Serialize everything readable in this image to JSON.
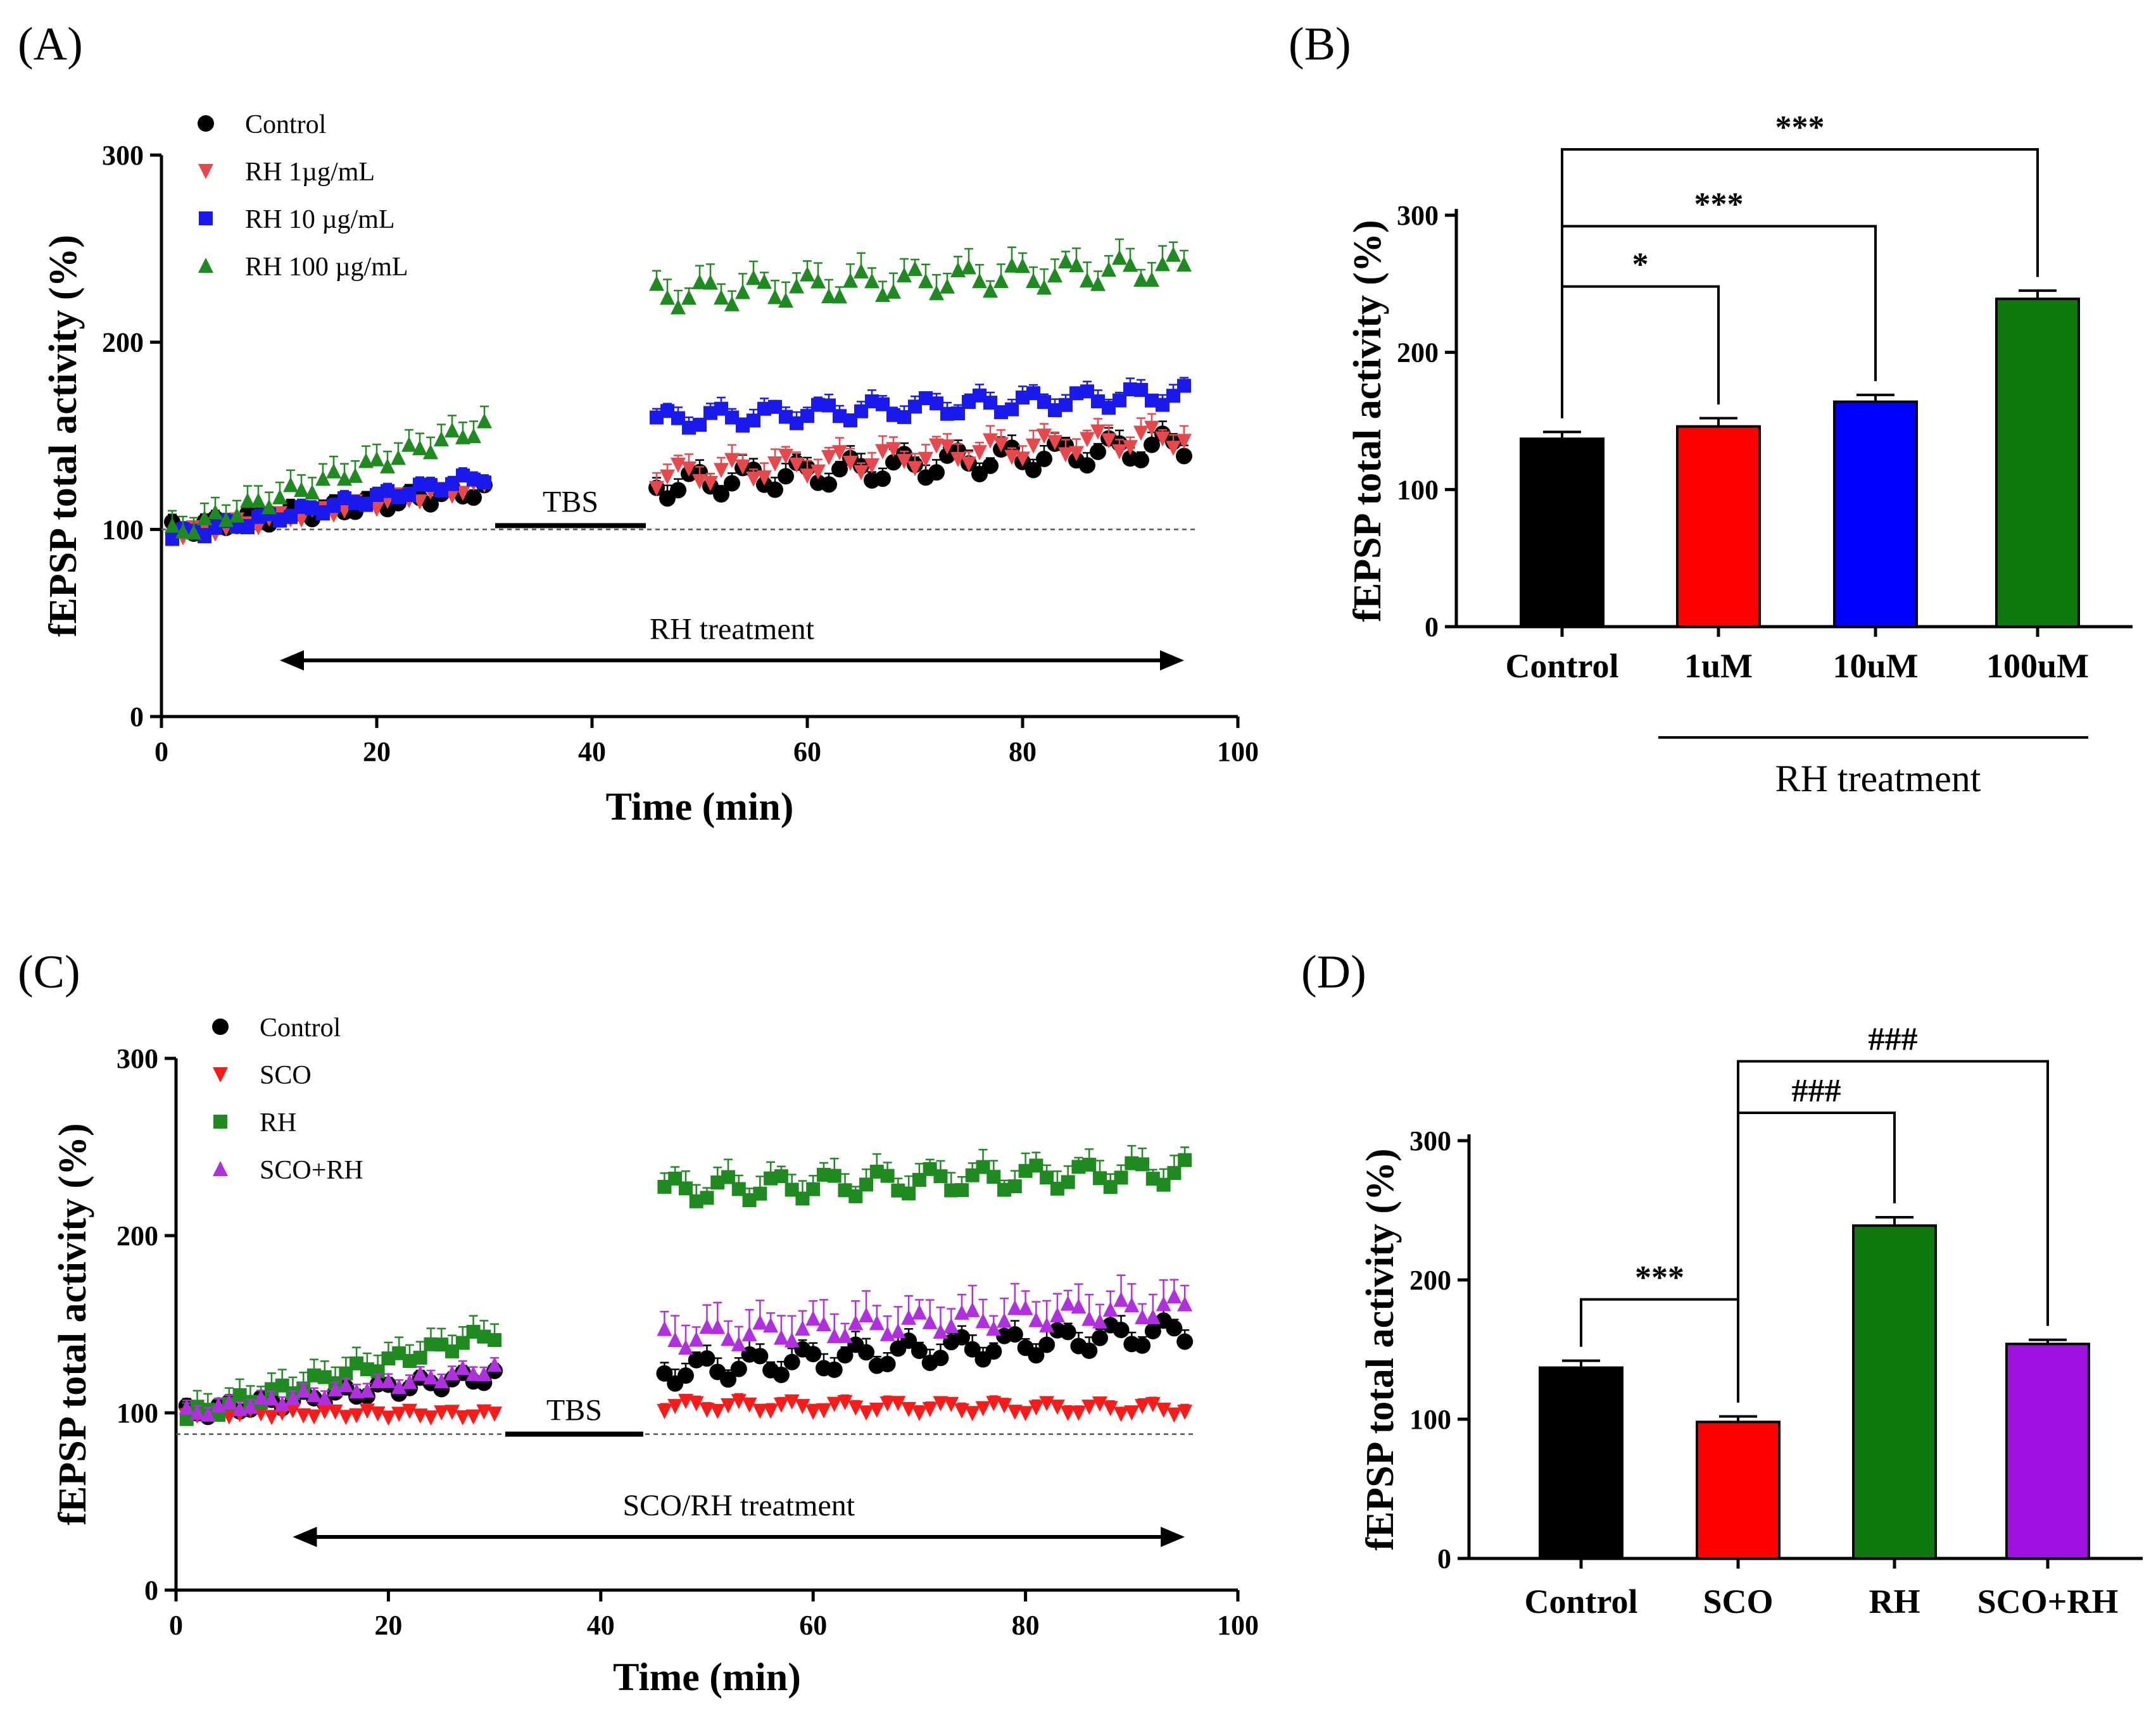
{
  "panel_labels": [
    "(A)",
    "(B)",
    "(C)",
    "(D)"
  ],
  "chart_data": [
    {
      "id": "A",
      "type": "scatter",
      "xlabel": "Time (min)",
      "ylabel": "fEPSP total activity (%)",
      "xlim": [
        0,
        100
      ],
      "ylim": [
        0,
        300
      ],
      "xticks": [
        0,
        20,
        40,
        60,
        80,
        100
      ],
      "yticks": [
        0,
        100,
        200,
        300
      ],
      "baseline": 100,
      "tbs": {
        "label": "TBS",
        "x0": 31,
        "x1": 45,
        "y": 102
      },
      "treatment": {
        "label": "RH treatment",
        "x0": 11,
        "x1": 95,
        "y": 30
      },
      "series": [
        {
          "name": "Control",
          "marker": "circle",
          "color": "#000000",
          "pre": {
            "start": 100,
            "end": 121,
            "wobble": 4,
            "err": 4
          },
          "post": {
            "start": 123,
            "end": 145,
            "wobble": 7,
            "err": 7
          }
        },
        {
          "name": "RH 1µg/mL",
          "marker": "tri-down",
          "color": "#e8474b",
          "pre": {
            "start": 97,
            "end": 123,
            "wobble": 3,
            "err": 3
          },
          "post": {
            "start": 128,
            "end": 150,
            "wobble": 6,
            "err": 8
          }
        },
        {
          "name": "RH 10 µg/mL",
          "marker": "square",
          "color": "#1a1aee",
          "pre": {
            "start": 96,
            "end": 128,
            "wobble": 3,
            "err": 4
          },
          "post": {
            "start": 158,
            "end": 172,
            "wobble": 5,
            "err": 6
          }
        },
        {
          "name": "RH 100 µg/mL",
          "marker": "tri-up",
          "color": "#1f8a1f",
          "pre": {
            "start": 98,
            "end": 155,
            "wobble": 4,
            "err": 8
          },
          "post": {
            "start": 225,
            "end": 240,
            "wobble": 7,
            "err": 10
          }
        }
      ]
    },
    {
      "id": "B",
      "type": "bar",
      "ylabel": "fEPSP total activity (%)",
      "ylim": [
        0,
        300
      ],
      "yticks": [
        0,
        100,
        200,
        300
      ],
      "categories": [
        "Control",
        "1uM",
        "10uM",
        "100uM"
      ],
      "values": [
        137,
        146,
        164,
        239
      ],
      "errors": [
        5,
        6,
        5,
        6
      ],
      "colors": [
        "#000000",
        "#ff0000",
        "#0000ff",
        "#0e7a0e"
      ],
      "significance": [
        {
          "from": 0,
          "to": 1,
          "label": "*",
          "level": 248
        },
        {
          "from": 0,
          "to": 2,
          "label": "***",
          "level": 292
        },
        {
          "from": 0,
          "to": 3,
          "label": "***",
          "level": 348
        }
      ],
      "group_label": "RH treatment"
    },
    {
      "id": "C",
      "type": "scatter",
      "xlabel": "Time (min)",
      "ylabel": "fEPSP total activity (%)",
      "xlim": [
        0,
        100
      ],
      "ylim": [
        0,
        300
      ],
      "xticks": [
        0,
        20,
        40,
        60,
        80,
        100
      ],
      "yticks": [
        0,
        100,
        200,
        300
      ],
      "baseline": 88,
      "tbs": {
        "label": "TBS",
        "x0": 31,
        "x1": 44,
        "y": 88
      },
      "treatment": {
        "label": "SCO/RH treatment",
        "x0": 11,
        "x1": 95,
        "y": 30
      },
      "series": [
        {
          "name": "Control",
          "marker": "circle",
          "color": "#000000",
          "pre": {
            "start": 100,
            "end": 121,
            "wobble": 4,
            "err": 4
          },
          "post": {
            "start": 123,
            "end": 146,
            "wobble": 7,
            "err": 8
          }
        },
        {
          "name": "SCO",
          "marker": "tri-down",
          "color": "#ff1a1a",
          "pre": {
            "start": 100,
            "end": 99,
            "wobble": 2,
            "err": 3
          },
          "post": {
            "start": 104,
            "end": 102,
            "wobble": 3,
            "err": 4
          }
        },
        {
          "name": "RH",
          "marker": "square",
          "color": "#1f8a1f",
          "pre": {
            "start": 98,
            "end": 145,
            "wobble": 4,
            "err": 9
          },
          "post": {
            "start": 225,
            "end": 236,
            "wobble": 7,
            "err": 10
          }
        },
        {
          "name": "SCO+RH",
          "marker": "tri-up",
          "color": "#b030e0",
          "pre": {
            "start": 100,
            "end": 125,
            "wobble": 3,
            "err": 4
          },
          "post": {
            "start": 142,
            "end": 160,
            "wobble": 6,
            "err": 14
          }
        }
      ]
    },
    {
      "id": "D",
      "type": "bar",
      "ylabel": "fEPSP total activity (%)",
      "ylim": [
        0,
        300
      ],
      "yticks": [
        0,
        100,
        200,
        300
      ],
      "categories": [
        "Control",
        "SCO",
        "RH",
        "SCO+RH"
      ],
      "values": [
        137,
        98,
        239,
        154
      ],
      "errors": [
        5,
        4,
        6,
        3
      ],
      "colors": [
        "#000000",
        "#ff0000",
        "#0e7a0e",
        "#a010e0"
      ],
      "significance": [
        {
          "from": 0,
          "to": 1,
          "label": "***",
          "level": 186
        },
        {
          "from": 1,
          "to": 2,
          "label": "###",
          "level": 320
        },
        {
          "from": 1,
          "to": 3,
          "label": "###",
          "level": 357
        }
      ]
    }
  ]
}
